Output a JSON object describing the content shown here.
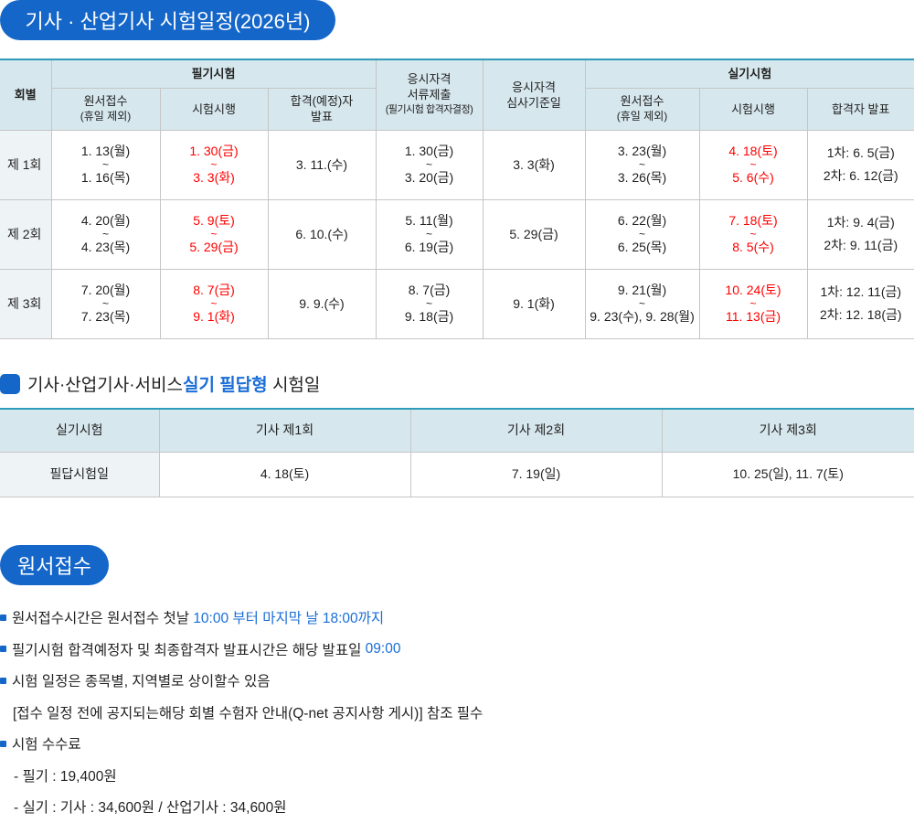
{
  "title": "기사 · 산업기사 시험일정(2026년)",
  "schedule": {
    "headers": {
      "round": "회별",
      "written": "필기시험",
      "qual_docs": [
        "응시자격",
        "서류제출",
        "(필기시험 합격자결정)"
      ],
      "qual_date": [
        "응시자격",
        "심사기준일"
      ],
      "practical": "실기시험",
      "written_sub": [
        [
          "원서접수",
          "(휴일 제외)"
        ],
        [
          "시험시행"
        ],
        [
          "합격(예정)자",
          "발표"
        ]
      ],
      "practical_sub": [
        [
          "원서접수",
          "(휴일 제외)"
        ],
        [
          "시험시행"
        ],
        [
          "합격자 발표"
        ]
      ]
    },
    "rows": [
      {
        "round": "제 1회",
        "w_apply": [
          "1. 13(월)",
          "~",
          "1. 16(목)"
        ],
        "w_exam": [
          "1. 30(금)",
          "~",
          "3. 3(화)"
        ],
        "w_result": "3. 11.(수)",
        "docs": [
          "1. 30(금)",
          "~",
          "3. 20(금)"
        ],
        "qual": "3. 3(화)",
        "p_apply": [
          "3. 23(월)",
          "~",
          "3. 26(목)"
        ],
        "p_exam": [
          "4. 18(토)",
          "~",
          "5. 6(수)"
        ],
        "p_result": [
          "1차: 6. 5(금)",
          "2차: 6. 12(금)"
        ]
      },
      {
        "round": "제 2회",
        "w_apply": [
          "4. 20(월)",
          "~",
          "4. 23(목)"
        ],
        "w_exam": [
          "5. 9(토)",
          "~",
          "5. 29(금)"
        ],
        "w_result": "6. 10.(수)",
        "docs": [
          "5. 11(월)",
          "~",
          "6. 19(금)"
        ],
        "qual": "5. 29(금)",
        "p_apply": [
          "6. 22(월)",
          "~",
          "6. 25(목)"
        ],
        "p_exam": [
          "7. 18(토)",
          "~",
          "8. 5(수)"
        ],
        "p_result": [
          "1차:  9. 4(금)",
          "2차: 9. 11(금)"
        ]
      },
      {
        "round": "제 3회",
        "w_apply": [
          "7. 20(월)",
          "~",
          "7. 23(목)"
        ],
        "w_exam": [
          "8. 7(금)",
          "~",
          "9. 1(화)"
        ],
        "w_result": "9. 9.(수)",
        "docs": [
          "8. 7(금)",
          "~",
          "9. 18(금)"
        ],
        "qual": "9. 1(화)",
        "p_apply": [
          "9. 21(월)",
          "~",
          "9. 23(수), 9. 28(월)"
        ],
        "p_exam": [
          "10. 24(토)",
          "~",
          "11. 13(금)"
        ],
        "p_result": [
          "1차: 12. 11(금)",
          "2차: 12. 18(금)"
        ]
      }
    ]
  },
  "written_answer": {
    "title_pre": "기사·산업기사·서비스 ",
    "title_hl": "실기 필답형",
    "title_post": " 시험일",
    "headers": [
      "실기시험",
      "기사 제1회",
      "기사 제2회",
      "기사 제3회"
    ],
    "row": [
      "필답시험일",
      "4. 18(토)",
      "7. 19(일)",
      "10. 25(일), 11. 7(토)"
    ]
  },
  "application": {
    "title": "원서접수",
    "notes": [
      {
        "text": "원서접수시간은 원서접수 첫날 ",
        "hl": "10:00 부터 마지막 날 18:00까지"
      },
      {
        "text": "필기시험 합격예정자 및 최종합격자 발표시간은 해당 발표일 ",
        "hl": "09:00"
      },
      {
        "text": "시험 일정은 종목별, 지역별로 상이할수 있음"
      },
      {
        "text": "[접수 일정 전에 공지되는해당 회별 수험자 안내(Q-net 공지사항 게시)] 참조 필수"
      },
      {
        "text": "시험 수수료"
      },
      {
        "text": "- 필기 : 19,400원"
      },
      {
        "text": "- 실기 : 기사 : 34,600원 / 산업기사 : 34,600원"
      }
    ]
  },
  "colors": {
    "accent": "#1466c9",
    "header_bg": "#d6e7ed",
    "border_top": "#2e9bb8",
    "exam_date": "#ff0000",
    "highlight": "#1a6ed8"
  }
}
